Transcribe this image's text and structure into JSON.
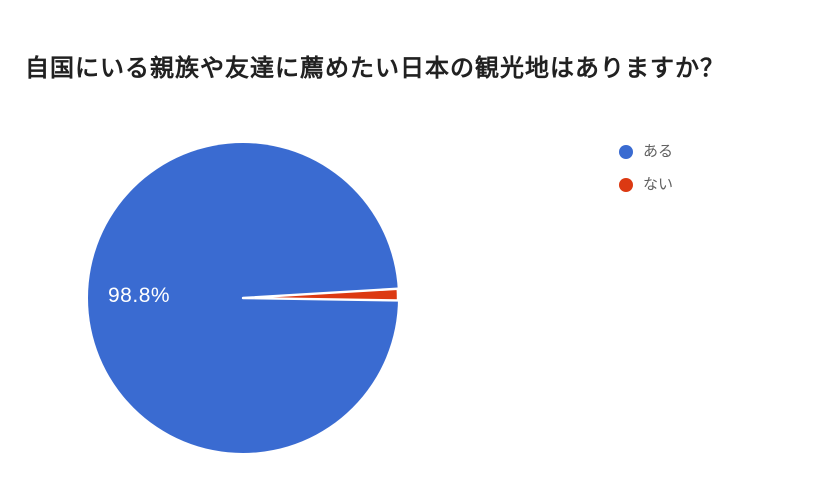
{
  "chart_data": {
    "type": "pie",
    "title": "自国にいる親族や友達に薦めたい日本の観光地はありますか？",
    "legend_position": "right",
    "background": "#ffffff",
    "slice_label_color": "#ffffff",
    "slice_border_color": "#ffffff",
    "start_angle_deg": 0.9,
    "series": [
      {
        "name": "ある",
        "value": 98.8,
        "label": "98.8%",
        "color": "#3A6BD1"
      },
      {
        "name": "ない",
        "value": 1.2,
        "label": "",
        "color": "#DC3912"
      }
    ]
  }
}
